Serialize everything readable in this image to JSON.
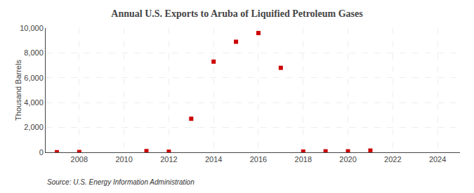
{
  "chart_data": {
    "type": "scatter",
    "title": "Annual U.S. Exports to Aruba of Liquified Petroleum Gases",
    "y_label": "Thousand Barrels",
    "annotations": [
      "Source: U.S. Energy Information Administration"
    ],
    "x": [
      2007,
      2008,
      2011,
      2012,
      2013,
      2014,
      2015,
      2016,
      2017,
      2018,
      2019,
      2020,
      2021
    ],
    "values": [
      10,
      25,
      100,
      50,
      2700,
      7300,
      8900,
      9600,
      6800,
      60,
      80,
      80,
      140
    ],
    "color": "#cc0000",
    "marker": "square",
    "xlim": [
      2006.5,
      2025
    ],
    "ylim": [
      0,
      10000
    ],
    "xticks": [
      2008,
      2010,
      2012,
      2014,
      2016,
      2018,
      2020,
      2022,
      2024
    ],
    "yticks": [
      0,
      {
        "value": 2000,
        "label": "2,000"
      },
      {
        "value": 4000,
        "label": "4,000"
      },
      {
        "value": 6000,
        "label": "6,000"
      },
      {
        "value": 8000,
        "label": "8,000"
      },
      {
        "value": 10000,
        "label": "10,000"
      }
    ],
    "grid": true
  }
}
